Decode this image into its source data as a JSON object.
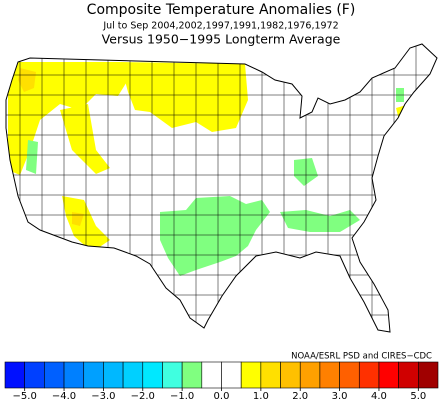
{
  "header": {
    "title": "Composite Temperature Anomalies (F)",
    "period": "Jul to Sep  2004,2002,1997,1991,1982,1976,1972",
    "baseline": "Versus 1950−1995 Longterm Average"
  },
  "credit": "NOAA/ESRL PSD and CIRES−CDC",
  "colorbar": {
    "range": [
      -5.5,
      5.5
    ],
    "colors": [
      "#0010ff",
      "#0040ff",
      "#0060ff",
      "#0080ff",
      "#00a0ff",
      "#00b8ff",
      "#00d0ff",
      "#00e8ff",
      "#40ffe0",
      "#80ff80",
      "#ffffff",
      "#ffffff",
      "#ffff00",
      "#ffe000",
      "#ffc000",
      "#ffa000",
      "#ff8000",
      "#ff6000",
      "#ff3000",
      "#ff0000",
      "#d00000",
      "#a00000"
    ],
    "ticks": [
      {
        "value": -5,
        "label": "−5.0"
      },
      {
        "value": -4,
        "label": "−4.0"
      },
      {
        "value": -3,
        "label": "−3.0"
      },
      {
        "value": -2,
        "label": "−2.0"
      },
      {
        "value": -1,
        "label": "−1.0"
      },
      {
        "value": 0,
        "label": "0.0"
      },
      {
        "value": 1,
        "label": "1.0"
      },
      {
        "value": 2,
        "label": "2.0"
      },
      {
        "value": 3,
        "label": "3.0"
      },
      {
        "value": 4,
        "label": "4.0"
      },
      {
        "value": 5,
        "label": "5.0"
      }
    ]
  }
}
